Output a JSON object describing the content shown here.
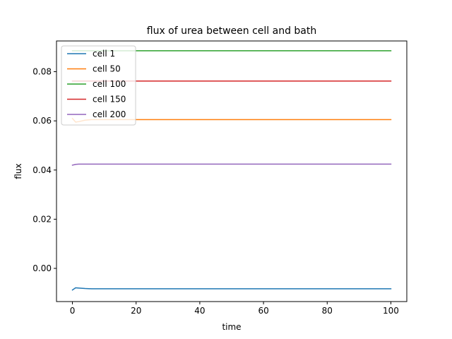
{
  "chart_data": {
    "type": "line",
    "title": "flux of urea between cell and bath",
    "xlabel": "time",
    "ylabel": "flux",
    "xlim": [
      -5,
      105
    ],
    "ylim": [
      -0.0135,
      0.0925
    ],
    "x_ticks": [
      0,
      20,
      40,
      60,
      80,
      100
    ],
    "y_ticks": [
      0.0,
      0.02,
      0.04,
      0.06,
      0.08
    ],
    "x_tick_labels": [
      "0",
      "20",
      "40",
      "60",
      "80",
      "100"
    ],
    "y_tick_labels": [
      "0.00",
      "0.02",
      "0.04",
      "0.06",
      "0.08"
    ],
    "grid": false,
    "legend_position": "upper left",
    "series": [
      {
        "name": "cell 1",
        "color": "#1f77b4",
        "x": [
          0,
          1,
          2,
          4,
          6,
          8,
          10,
          15,
          20,
          40,
          60,
          80,
          100
        ],
        "y": [
          -0.0088,
          -0.0079,
          -0.008,
          -0.0082,
          -0.0083,
          -0.0083,
          -0.0083,
          -0.0083,
          -0.0083,
          -0.0083,
          -0.0083,
          -0.0083,
          -0.0083
        ]
      },
      {
        "name": "cell 50",
        "color": "#ff7f0e",
        "x": [
          0,
          1,
          2,
          4,
          6,
          8,
          10,
          15,
          20,
          40,
          60,
          80,
          100
        ],
        "y": [
          0.061,
          0.0595,
          0.0597,
          0.0603,
          0.0605,
          0.0605,
          0.0605,
          0.0605,
          0.0605,
          0.0605,
          0.0605,
          0.0605,
          0.0605
        ]
      },
      {
        "name": "cell 100",
        "color": "#2ca02c",
        "x": [
          0,
          1,
          2,
          4,
          6,
          8,
          10,
          15,
          20,
          40,
          60,
          80,
          100
        ],
        "y": [
          0.0885,
          0.0885,
          0.0885,
          0.0885,
          0.0885,
          0.0885,
          0.0885,
          0.0885,
          0.0885,
          0.0885,
          0.0885,
          0.0885,
          0.0885
        ]
      },
      {
        "name": "cell 150",
        "color": "#d62728",
        "x": [
          0,
          1,
          2,
          4,
          6,
          8,
          10,
          15,
          20,
          40,
          60,
          80,
          100
        ],
        "y": [
          0.0762,
          0.0762,
          0.0762,
          0.0762,
          0.0762,
          0.0762,
          0.0762,
          0.0762,
          0.0762,
          0.0762,
          0.0762,
          0.0762,
          0.0762
        ]
      },
      {
        "name": "cell 200",
        "color": "#9467bd",
        "x": [
          0,
          1,
          2,
          4,
          6,
          8,
          10,
          15,
          20,
          40,
          60,
          80,
          100
        ],
        "y": [
          0.042,
          0.0423,
          0.0424,
          0.0424,
          0.0424,
          0.0424,
          0.0424,
          0.0424,
          0.0424,
          0.0424,
          0.0424,
          0.0424,
          0.0424
        ]
      }
    ]
  }
}
